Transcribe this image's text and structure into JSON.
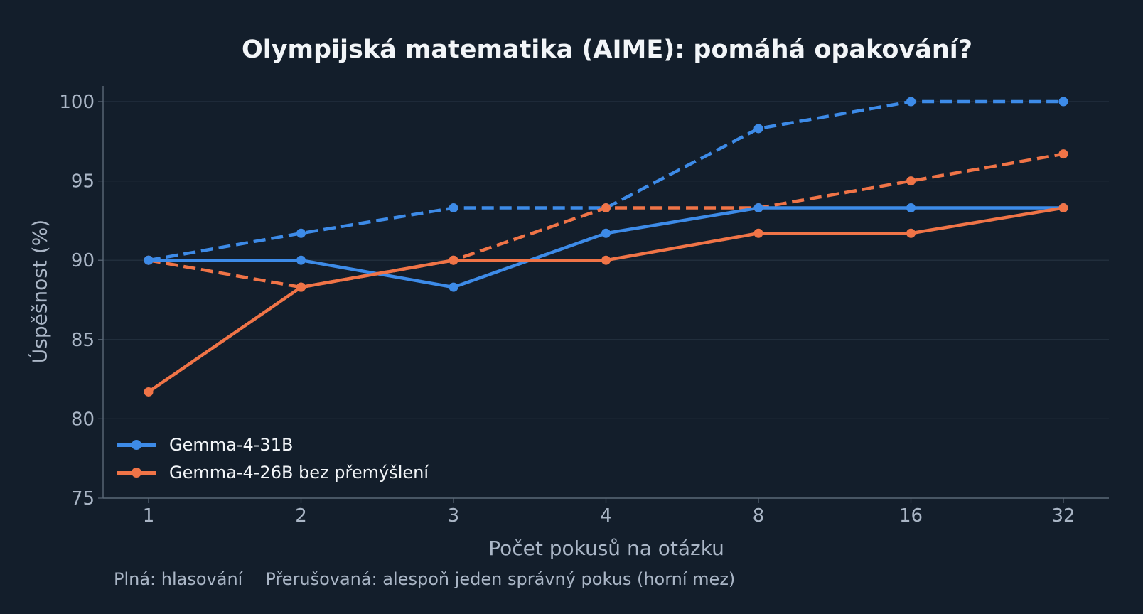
{
  "chart_data": {
    "type": "line",
    "title": "Olympijská matematika (AIME): pomáhá opakování?",
    "xlabel": "Počet pokusů na otázku",
    "ylabel": "Úspěšnost (%)",
    "x": [
      "1",
      "2",
      "3",
      "4",
      "8",
      "16",
      "32"
    ],
    "x_scale": "categorical",
    "ylim": [
      75,
      101
    ],
    "yticks": [
      75,
      80,
      85,
      90,
      95,
      100
    ],
    "grid": "horizontal",
    "legend_position": "bottom-left",
    "series": [
      {
        "name": "Gemma-4-31B",
        "style": "solid",
        "color": "#3d8be8",
        "values": [
          90.0,
          90.0,
          88.3,
          91.7,
          93.3,
          93.3,
          93.3
        ]
      },
      {
        "name": "Gemma-4-26B bez přemýšlení",
        "style": "solid",
        "color": "#f07447",
        "values": [
          81.7,
          88.3,
          90.0,
          90.0,
          91.7,
          91.7,
          93.3
        ]
      },
      {
        "style": "dashed",
        "color": "#3d8be8",
        "values": [
          90.0,
          91.7,
          93.3,
          93.3,
          98.3,
          100.0,
          100.0
        ]
      },
      {
        "style": "dashed",
        "color": "#f07447",
        "values": [
          90.0,
          88.3,
          90.0,
          93.3,
          93.3,
          95.0,
          96.7
        ]
      }
    ],
    "footnote": [
      "Plná: hlasování",
      "Přerušovaná: alespoň jeden správný pokus (horní mez)"
    ]
  },
  "colors": {
    "background": "#131e2b",
    "grid": "#263342",
    "axis": "#5b6878",
    "tick_text": "#aab6c6",
    "title_text": "#f2f5f8"
  }
}
